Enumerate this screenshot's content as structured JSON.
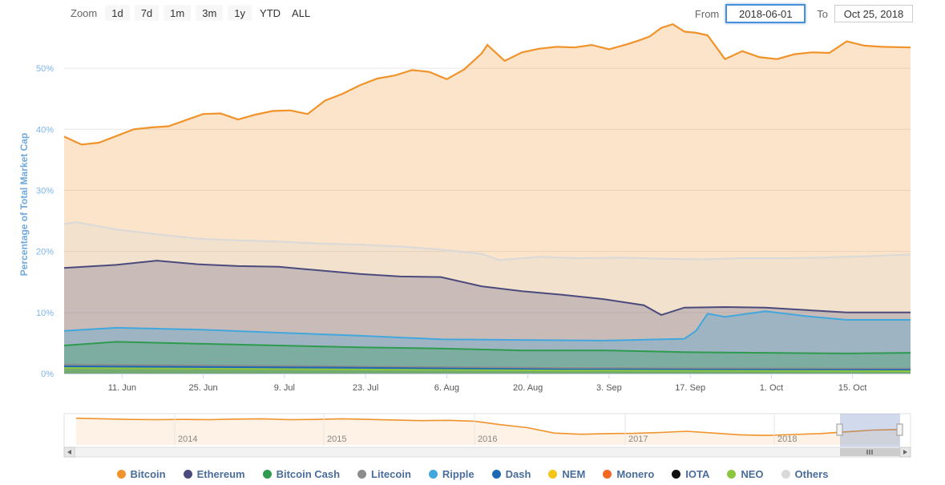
{
  "toolbar": {
    "zoom_label": "Zoom",
    "zoom_buttons": [
      "1d",
      "7d",
      "1m",
      "3m",
      "1y",
      "YTD",
      "ALL"
    ],
    "from_label": "From",
    "from_value": "2018-06-01",
    "to_label": "To",
    "to_value": "Oct 25, 2018"
  },
  "chart_data": {
    "type": "area",
    "ylabel": "Percentage of Total Market Cap",
    "ylim": [
      0,
      55
    ],
    "yticks": [
      0,
      10,
      20,
      30,
      40,
      50
    ],
    "ytick_labels": [
      "0%",
      "10%",
      "20%",
      "30%",
      "40%",
      "50%"
    ],
    "xlim": [
      "2018-06-01",
      "2018-10-25"
    ],
    "xticks": [
      "2018-06-11",
      "2018-06-25",
      "2018-07-09",
      "2018-07-23",
      "2018-08-06",
      "2018-08-20",
      "2018-09-03",
      "2018-09-17",
      "2018-10-01",
      "2018-10-15"
    ],
    "xtick_labels": [
      "11. Jun",
      "25. Jun",
      "9. Jul",
      "23. Jul",
      "6. Aug",
      "20. Aug",
      "3. Sep",
      "17. Sep",
      "1. Oct",
      "15. Oct"
    ],
    "grid": "horizontal",
    "legend_position": "bottom",
    "series": [
      {
        "name": "Others",
        "color": "#d9d9d9",
        "x": [
          "2018-06-01",
          "2018-06-03",
          "2018-06-10",
          "2018-06-17",
          "2018-06-24",
          "2018-07-01",
          "2018-07-08",
          "2018-07-15",
          "2018-07-22",
          "2018-07-29",
          "2018-08-05",
          "2018-08-12",
          "2018-08-15",
          "2018-08-22",
          "2018-08-29",
          "2018-09-05",
          "2018-09-12",
          "2018-09-19",
          "2018-09-26",
          "2018-10-03",
          "2018-10-10",
          "2018-10-17",
          "2018-10-25"
        ],
        "values": [
          24.5,
          24.8,
          23.6,
          22.8,
          22.1,
          21.8,
          21.6,
          21.3,
          21.1,
          20.8,
          20.3,
          19.6,
          18.6,
          19.1,
          18.9,
          19.0,
          18.8,
          18.7,
          18.9,
          18.9,
          19.0,
          19.2,
          19.5
        ]
      },
      {
        "name": "Ethereum",
        "color": "#4b4a7d",
        "x": [
          "2018-06-01",
          "2018-06-10",
          "2018-06-17",
          "2018-06-24",
          "2018-07-01",
          "2018-07-08",
          "2018-07-15",
          "2018-07-22",
          "2018-07-29",
          "2018-08-05",
          "2018-08-12",
          "2018-08-19",
          "2018-08-26",
          "2018-09-02",
          "2018-09-09",
          "2018-09-12",
          "2018-09-16",
          "2018-09-23",
          "2018-09-30",
          "2018-10-07",
          "2018-10-14",
          "2018-10-25"
        ],
        "values": [
          17.3,
          17.8,
          18.5,
          17.9,
          17.6,
          17.5,
          16.9,
          16.3,
          15.9,
          15.8,
          14.3,
          13.5,
          12.9,
          12.2,
          11.2,
          9.6,
          10.8,
          10.9,
          10.8,
          10.4,
          10.0,
          10.0
        ]
      },
      {
        "name": "Ripple",
        "color": "#42a7dd",
        "x": [
          "2018-06-01",
          "2018-06-10",
          "2018-06-24",
          "2018-07-08",
          "2018-07-22",
          "2018-08-05",
          "2018-08-19",
          "2018-09-02",
          "2018-09-16",
          "2018-09-18",
          "2018-09-20",
          "2018-09-23",
          "2018-09-30",
          "2018-10-07",
          "2018-10-14",
          "2018-10-25"
        ],
        "values": [
          7.0,
          7.5,
          7.2,
          6.7,
          6.2,
          5.6,
          5.5,
          5.4,
          5.7,
          7.0,
          9.8,
          9.3,
          10.2,
          9.4,
          8.8,
          8.8
        ]
      },
      {
        "name": "Bitcoin Cash",
        "color": "#2e9b4f",
        "x": [
          "2018-06-01",
          "2018-06-10",
          "2018-06-24",
          "2018-07-08",
          "2018-07-22",
          "2018-08-05",
          "2018-08-19",
          "2018-09-02",
          "2018-09-16",
          "2018-09-30",
          "2018-10-14",
          "2018-10-25"
        ],
        "values": [
          4.6,
          5.2,
          4.9,
          4.6,
          4.3,
          4.1,
          3.8,
          3.8,
          3.5,
          3.4,
          3.3,
          3.4
        ]
      },
      {
        "name": "Litecoin",
        "color": "#8c8c8c",
        "x": [
          "2018-06-01",
          "2018-07-15",
          "2018-08-26",
          "2018-10-25"
        ],
        "values": [
          1.5,
          1.2,
          0.9,
          0.8
        ]
      },
      {
        "name": "Dash",
        "color": "#1d6ab3",
        "x": [
          "2018-06-01",
          "2018-07-15",
          "2018-08-26",
          "2018-10-25"
        ],
        "values": [
          1.2,
          1.0,
          0.7,
          0.6
        ]
      },
      {
        "name": "NEO",
        "color": "#8cc63f",
        "x": [
          "2018-06-01",
          "2018-07-15",
          "2018-08-26",
          "2018-10-25"
        ],
        "values": [
          0.9,
          0.7,
          0.5,
          0.4
        ]
      },
      {
        "name": "Bitcoin",
        "color": "#f0932b",
        "x": [
          "2018-06-01",
          "2018-06-04",
          "2018-06-07",
          "2018-06-10",
          "2018-06-13",
          "2018-06-16",
          "2018-06-19",
          "2018-06-22",
          "2018-06-25",
          "2018-06-28",
          "2018-07-01",
          "2018-07-04",
          "2018-07-07",
          "2018-07-10",
          "2018-07-13",
          "2018-07-16",
          "2018-07-19",
          "2018-07-22",
          "2018-07-25",
          "2018-07-28",
          "2018-07-31",
          "2018-08-03",
          "2018-08-06",
          "2018-08-09",
          "2018-08-12",
          "2018-08-13",
          "2018-08-16",
          "2018-08-19",
          "2018-08-22",
          "2018-08-25",
          "2018-08-28",
          "2018-08-31",
          "2018-09-03",
          "2018-09-06",
          "2018-09-08",
          "2018-09-10",
          "2018-09-12",
          "2018-09-14",
          "2018-09-16",
          "2018-09-18",
          "2018-09-20",
          "2018-09-23",
          "2018-09-26",
          "2018-09-29",
          "2018-10-02",
          "2018-10-05",
          "2018-10-08",
          "2018-10-11",
          "2018-10-14",
          "2018-10-17",
          "2018-10-20",
          "2018-10-25"
        ],
        "values": [
          38.8,
          37.5,
          37.8,
          38.9,
          40.0,
          40.3,
          40.5,
          41.5,
          42.5,
          42.6,
          41.6,
          42.4,
          43.0,
          43.1,
          42.5,
          44.7,
          45.8,
          47.2,
          48.3,
          48.8,
          49.7,
          49.4,
          48.2,
          49.8,
          52.4,
          53.8,
          51.2,
          52.6,
          53.2,
          53.5,
          53.4,
          53.8,
          53.1,
          53.9,
          54.5,
          55.2,
          56.6,
          57.2,
          56.0,
          55.8,
          55.4,
          51.5,
          52.8,
          51.8,
          51.5,
          52.3,
          52.6,
          52.5,
          54.4,
          53.7,
          53.5,
          53.4
        ]
      }
    ],
    "navigator": {
      "xtick_labels": [
        "2014",
        "2015",
        "2016",
        "2017",
        "2018"
      ],
      "values": [
        90,
        88,
        86,
        85,
        86,
        85,
        87,
        88,
        85,
        86,
        88,
        86,
        84,
        82,
        83,
        80,
        68,
        58,
        40,
        36,
        38,
        39,
        42,
        46,
        40,
        34,
        32,
        35,
        38,
        44,
        50,
        52
      ]
    },
    "legend": [
      "Bitcoin",
      "Ethereum",
      "Bitcoin Cash",
      "Litecoin",
      "Ripple",
      "Dash",
      "NEM",
      "Monero",
      "IOTA",
      "NEO",
      "Others"
    ],
    "legend_colors": [
      "#f0932b",
      "#4b4a7d",
      "#2e9b4f",
      "#8c8c8c",
      "#42a7dd",
      "#1d6ab3",
      "#f5c518",
      "#f26522",
      "#111111",
      "#8cc63f",
      "#d9d9d9"
    ]
  }
}
